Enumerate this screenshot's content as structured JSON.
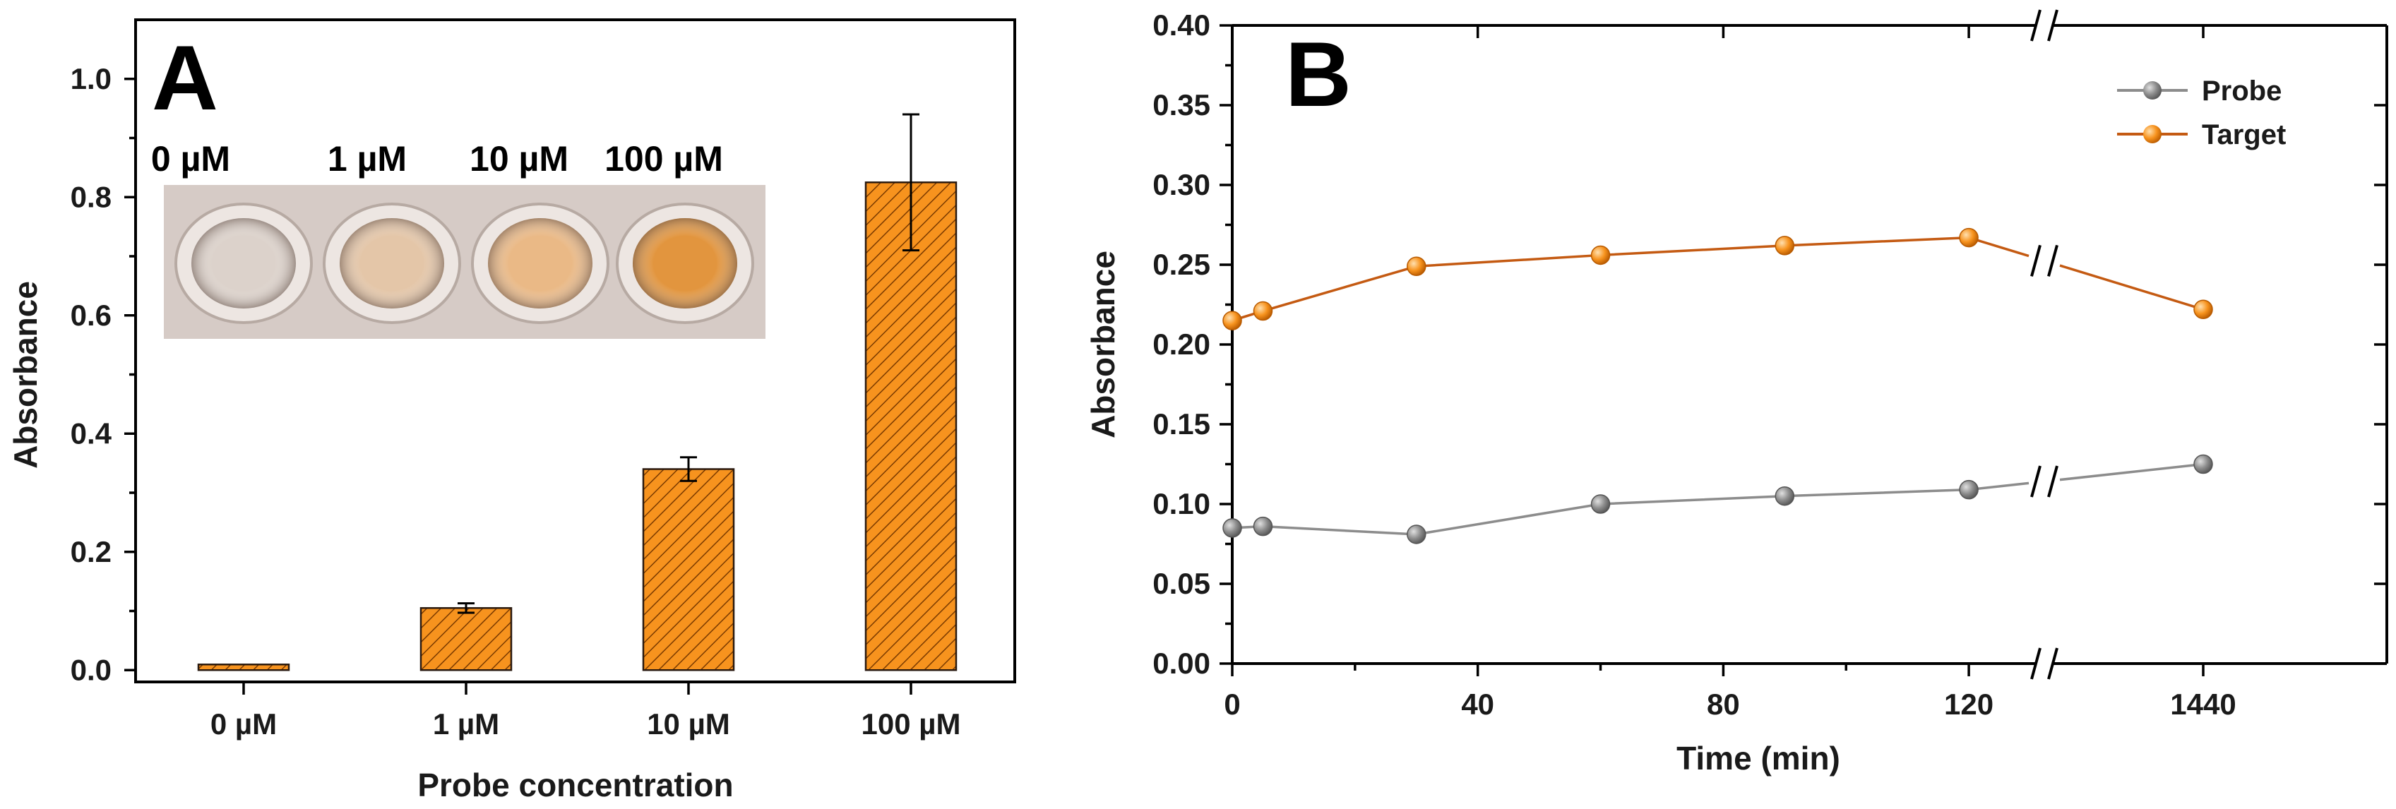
{
  "chart_data": [
    {
      "panel": "A",
      "type": "bar",
      "title": "",
      "xlabel": "Probe concentration",
      "ylabel": "Absorbance",
      "categories": [
        "0 µM",
        "1 µM",
        "10 µM",
        "100 µM"
      ],
      "values": [
        0.0,
        0.105,
        0.34,
        0.825
      ],
      "errors": [
        0.0,
        0.008,
        0.02,
        0.115
      ],
      "ylim": [
        -0.02,
        1.1
      ],
      "yticks": [
        "0.0",
        "0.2",
        "0.4",
        "0.6",
        "0.8",
        "1.0"
      ],
      "bar_color": "#f7931e",
      "hatch_color": "#7a3a00",
      "inset_labels": [
        "0 µM",
        "1 µM",
        "10 µM",
        "100 µM"
      ],
      "inset_well_colors": [
        "#d9cfc9",
        "#e2c2a2",
        "#e9b47c",
        "#e08c2c"
      ]
    },
    {
      "panel": "B",
      "type": "line",
      "title": "",
      "xlabel": "Time (min)",
      "ylabel": "Absorbance",
      "x_ticks": [
        "0",
        "40",
        "80",
        "120",
        "1440"
      ],
      "ylim": [
        0.0,
        0.4
      ],
      "yticks": [
        "0.00",
        "0.05",
        "0.10",
        "0.15",
        "0.20",
        "0.25",
        "0.30",
        "0.35",
        "0.40"
      ],
      "axis_break": "between 120 and 1440",
      "series": [
        {
          "name": "Probe",
          "color": "#8c8c8c",
          "x": [
            0,
            5,
            30,
            60,
            90,
            120,
            1440
          ],
          "y": [
            0.085,
            0.086,
            0.081,
            0.1,
            0.105,
            0.109,
            0.125
          ]
        },
        {
          "name": "Target",
          "color": "#f7931e",
          "line_color": "#c45a12",
          "x": [
            0,
            5,
            30,
            60,
            90,
            120,
            1440
          ],
          "y": [
            0.215,
            0.221,
            0.249,
            0.256,
            0.262,
            0.267,
            0.222
          ]
        }
      ]
    }
  ]
}
